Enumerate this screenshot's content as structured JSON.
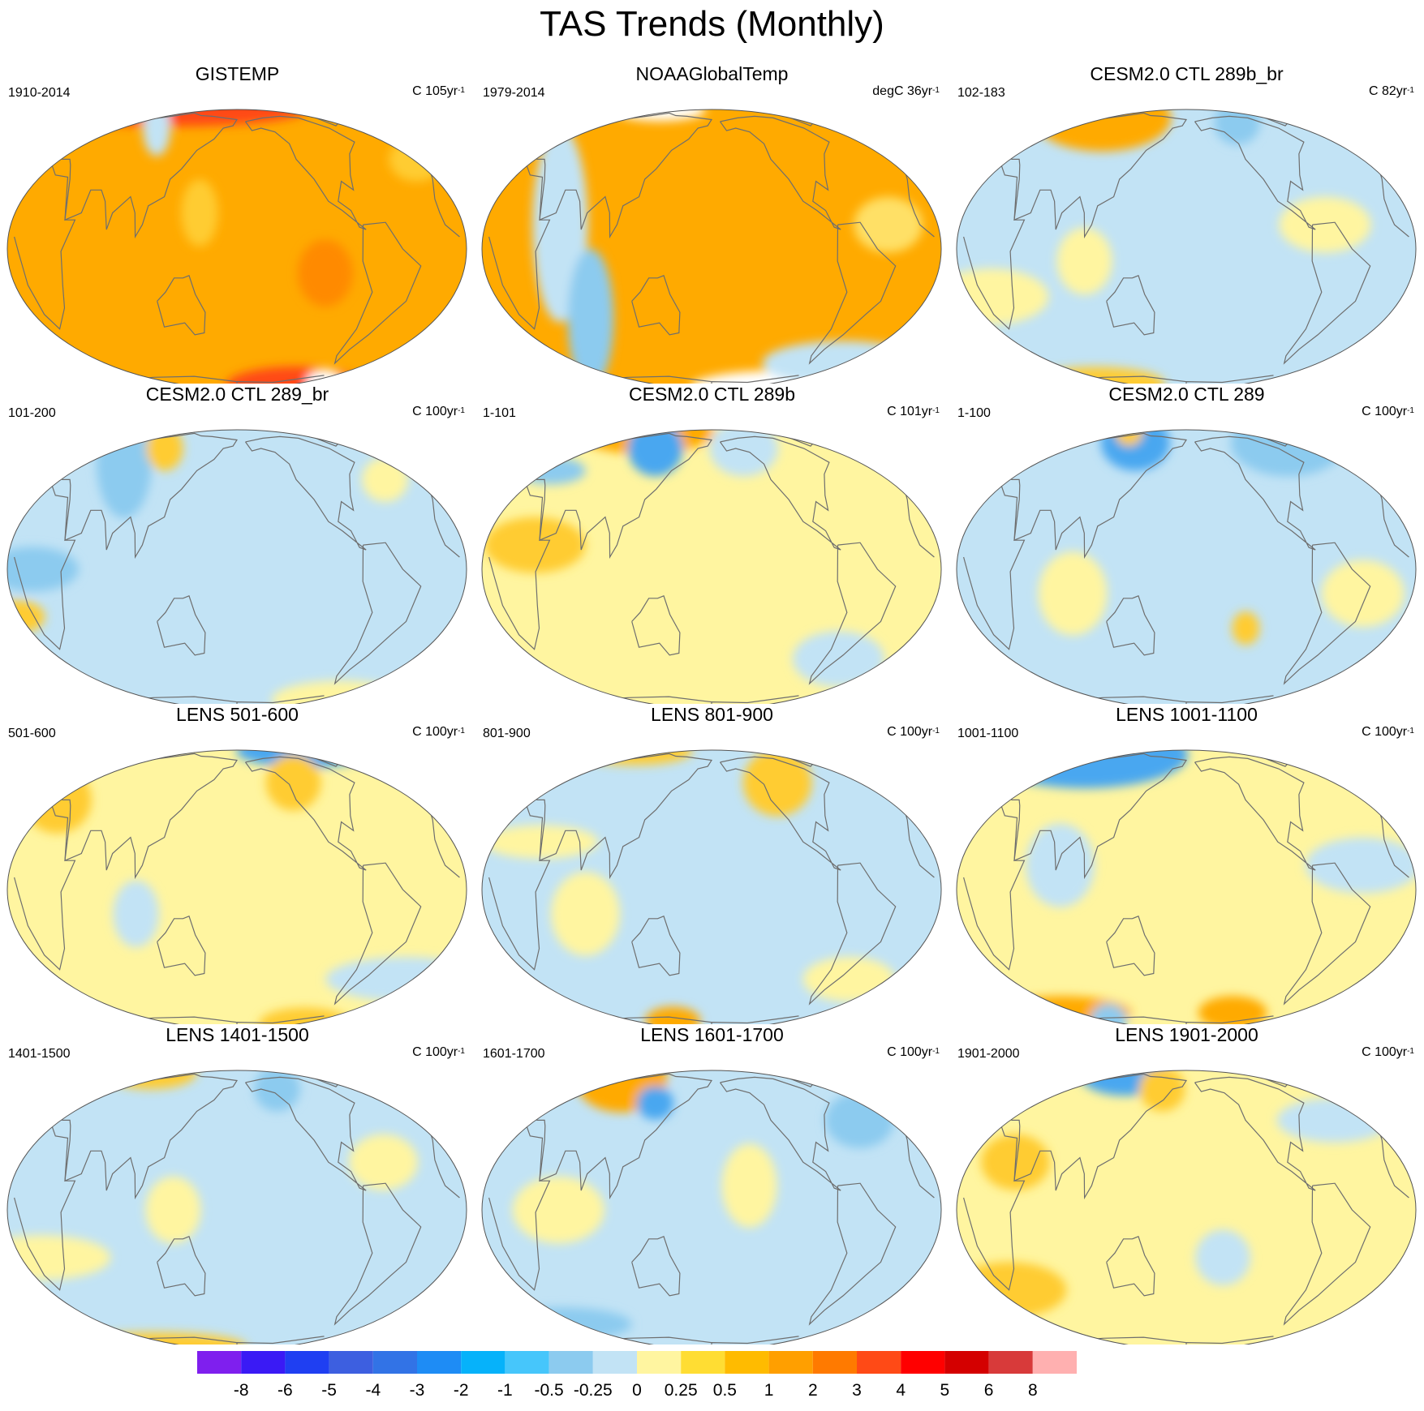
{
  "title": "TAS Trends (Monthly)",
  "colors": {
    "land_outline": "#6e6e6e",
    "ocean_edge": "#555555",
    "missing": "#ffffff"
  },
  "panels": [
    {
      "title": "GISTEMP",
      "period": "1910-2014",
      "units_prefix": "C 105yr",
      "units_sup": "-1",
      "base": "#ffaa00",
      "blobs": [
        {
          "lon": 0,
          "lat": 86,
          "rx": 0.6,
          "ry": 0.06,
          "c": "#ff4a16"
        },
        {
          "lon": -60,
          "lat": -80,
          "rx": 0.3,
          "ry": 0.07,
          "c": "#ff4a16"
        },
        {
          "lon": -25,
          "lat": -75,
          "rx": 0.08,
          "ry": 0.05,
          "c": "#ffffff"
        },
        {
          "lon": 80,
          "lat": 60,
          "rx": 0.06,
          "ry": 0.1,
          "c": "#c2e3f5"
        },
        {
          "lon": 150,
          "lat": 15,
          "rx": 0.08,
          "ry": 0.12,
          "c": "#ffcc33"
        },
        {
          "lon": -110,
          "lat": -10,
          "rx": 0.12,
          "ry": 0.12,
          "c": "#ff8a00"
        },
        {
          "lon": -10,
          "lat": 40,
          "rx": 0.12,
          "ry": 0.08,
          "c": "#ffcc33"
        }
      ]
    },
    {
      "title": "NOAAGlobalTemp",
      "period": "1979-2014",
      "units_prefix": "degC 36yr",
      "units_sup": "-1",
      "base": "#ffaa00",
      "blobs": [
        {
          "lon": 60,
          "lat": 10,
          "rx": 0.12,
          "ry": 0.35,
          "c": "#c2e3f5"
        },
        {
          "lon": 75,
          "lat": -30,
          "rx": 0.1,
          "ry": 0.25,
          "c": "#8ccbef"
        },
        {
          "lon": -20,
          "lat": -82,
          "rx": 0.4,
          "ry": 0.06,
          "c": "#ffffff"
        },
        {
          "lon": 40,
          "lat": 86,
          "rx": 0.2,
          "ry": 0.04,
          "c": "#ffffff"
        },
        {
          "lon": -30,
          "lat": -55,
          "rx": 0.35,
          "ry": 0.08,
          "c": "#c2e3f5"
        },
        {
          "lon": -40,
          "lat": 10,
          "rx": 0.15,
          "ry": 0.1,
          "c": "#ffe066"
        }
      ]
    },
    {
      "title": "CESM2.0 CTL 289b_br",
      "period": "102-183",
      "units_prefix": "C 82yr",
      "units_sup": "-1",
      "base": "#c2e3f5",
      "blobs": [
        {
          "lon": 50,
          "lat": 70,
          "rx": 0.3,
          "ry": 0.12,
          "c": "#ffaa00"
        },
        {
          "lon": -70,
          "lat": 10,
          "rx": 0.2,
          "ry": 0.1,
          "c": "#fff5a0"
        },
        {
          "lon": 20,
          "lat": -20,
          "rx": 0.25,
          "ry": 0.1,
          "c": "#fff5a0"
        },
        {
          "lon": -110,
          "lat": 65,
          "rx": 0.1,
          "ry": 0.08,
          "c": "#8ccbef"
        },
        {
          "lon": 20,
          "lat": -75,
          "rx": 0.3,
          "ry": 0.06,
          "c": "#ffcc33"
        },
        {
          "lon": 100,
          "lat": -5,
          "rx": 0.12,
          "ry": 0.12,
          "c": "#fff5a0"
        }
      ]
    },
    {
      "title": "CESM2.0 CTL 289_br",
      "period": "101-200",
      "units_prefix": "C 100yr",
      "units_sup": "-1",
      "base": "#c2e3f5",
      "blobs": [
        {
          "lon": 20,
          "lat": 0,
          "rx": 0.2,
          "ry": 0.08,
          "c": "#8ccbef"
        },
        {
          "lon": 0,
          "lat": -20,
          "rx": 0.12,
          "ry": 0.06,
          "c": "#ffcc33"
        },
        {
          "lon": 60,
          "lat": 50,
          "rx": 0.12,
          "ry": 0.2,
          "c": "#8ccbef"
        },
        {
          "lon": -40,
          "lat": 40,
          "rx": 0.1,
          "ry": 0.08,
          "c": "#fff5a0"
        },
        {
          "lon": 90,
          "lat": 60,
          "rx": 0.08,
          "ry": 0.08,
          "c": "#ffcc33"
        },
        {
          "lon": -20,
          "lat": -70,
          "rx": 0.3,
          "ry": 0.07,
          "c": "#fff5a0"
        }
      ]
    },
    {
      "title": "CESM2.0 CTL 289b",
      "period": "1-101",
      "units_prefix": "C 101yr",
      "units_sup": "-1",
      "base": "#fff5a0",
      "blobs": [
        {
          "lon": 40,
          "lat": 80,
          "rx": 0.3,
          "ry": 0.08,
          "c": "#ffaa00"
        },
        {
          "lon": 110,
          "lat": 60,
          "rx": 0.12,
          "ry": 0.1,
          "c": "#4aa7f0"
        },
        {
          "lon": 40,
          "lat": 10,
          "rx": 0.22,
          "ry": 0.1,
          "c": "#ffcc33"
        },
        {
          "lon": -60,
          "lat": -40,
          "rx": 0.2,
          "ry": 0.1,
          "c": "#c2e3f5"
        },
        {
          "lon": 20,
          "lat": 45,
          "rx": 0.15,
          "ry": 0.05,
          "c": "#8ccbef"
        },
        {
          "lon": -140,
          "lat": 60,
          "rx": 0.15,
          "ry": 0.1,
          "c": "#c2e3f5"
        }
      ]
    },
    {
      "title": "CESM2.0 CTL 289",
      "period": "1-100",
      "units_prefix": "C 100yr",
      "units_sup": "-1",
      "base": "#c2e3f5",
      "blobs": [
        {
          "lon": -40,
          "lat": 65,
          "rx": 0.25,
          "ry": 0.12,
          "c": "#8ccbef"
        },
        {
          "lon": 110,
          "lat": 65,
          "rx": 0.15,
          "ry": 0.1,
          "c": "#4aa7f0"
        },
        {
          "lon": -40,
          "lat": -10,
          "rx": 0.18,
          "ry": 0.12,
          "c": "#fff5a0"
        },
        {
          "lon": 90,
          "lat": -10,
          "rx": 0.15,
          "ry": 0.15,
          "c": "#fff5a0"
        },
        {
          "lon": -130,
          "lat": -25,
          "rx": 0.06,
          "ry": 0.06,
          "c": "#ffcc33"
        },
        {
          "lon": 60,
          "lat": 80,
          "rx": 0.06,
          "ry": 0.05,
          "c": "#ffcc33"
        }
      ]
    },
    {
      "title": "LENS 501-600",
      "period": "501-600",
      "units_prefix": "C 100yr",
      "units_sup": "-1",
      "base": "#fff5a0",
      "blobs": [
        {
          "lon": -20,
          "lat": 83,
          "rx": 0.3,
          "ry": 0.06,
          "c": "#4aa7f0"
        },
        {
          "lon": 10,
          "lat": 40,
          "rx": 0.15,
          "ry": 0.12,
          "c": "#ffcc33"
        },
        {
          "lon": -20,
          "lat": -40,
          "rx": 0.35,
          "ry": 0.08,
          "c": "#c2e3f5"
        },
        {
          "lon": -120,
          "lat": 50,
          "rx": 0.12,
          "ry": 0.1,
          "c": "#ffcc33"
        },
        {
          "lon": 100,
          "lat": -10,
          "rx": 0.1,
          "ry": 0.12,
          "c": "#c2e3f5"
        },
        {
          "lon": -60,
          "lat": -75,
          "rx": 0.2,
          "ry": 0.06,
          "c": "#ffcc33"
        }
      ]
    },
    {
      "title": "LENS 801-900",
      "period": "801-900",
      "units_prefix": "C 100yr",
      "units_sup": "-1",
      "base": "#c2e3f5",
      "blobs": [
        {
          "lon": -110,
          "lat": 50,
          "rx": 0.15,
          "ry": 0.12,
          "c": "#ffcc33"
        },
        {
          "lon": 0,
          "lat": 83,
          "rx": 0.25,
          "ry": 0.05,
          "c": "#ffcc33"
        },
        {
          "lon": 40,
          "lat": 20,
          "rx": 0.25,
          "ry": 0.06,
          "c": "#fff5a0"
        },
        {
          "lon": 80,
          "lat": -10,
          "rx": 0.15,
          "ry": 0.15,
          "c": "#fff5a0"
        },
        {
          "lon": 120,
          "lat": -70,
          "rx": 0.12,
          "ry": 0.05,
          "c": "#ffaa00"
        },
        {
          "lon": -50,
          "lat": -40,
          "rx": 0.2,
          "ry": 0.08,
          "c": "#fff5a0"
        }
      ]
    },
    {
      "title": "LENS 1001-1100",
      "period": "1001-1100",
      "units_prefix": "C 100yr",
      "units_sup": "-1",
      "base": "#fff5a0",
      "blobs": [
        {
          "lon": 0,
          "lat": 75,
          "rx": 0.45,
          "ry": 0.12,
          "c": "#4aa7f0"
        },
        {
          "lon": -40,
          "lat": 10,
          "rx": 0.25,
          "ry": 0.1,
          "c": "#c2e3f5"
        },
        {
          "lon": 80,
          "lat": 10,
          "rx": 0.15,
          "ry": 0.15,
          "c": "#c2e3f5"
        },
        {
          "lon": 20,
          "lat": -62,
          "rx": 0.3,
          "ry": 0.06,
          "c": "#ffaa00"
        },
        {
          "lon": -120,
          "lat": -62,
          "rx": 0.15,
          "ry": 0.06,
          "c": "#ffaa00"
        },
        {
          "lon": 60,
          "lat": -70,
          "rx": 0.08,
          "ry": 0.06,
          "c": "#8ccbef"
        }
      ]
    },
    {
      "title": "LENS 1401-1500",
      "period": "1401-1500",
      "units_prefix": "C 100yr",
      "units_sup": "-1",
      "base": "#c2e3f5",
      "blobs": [
        {
          "lon": 20,
          "lat": -20,
          "rx": 0.3,
          "ry": 0.08,
          "c": "#fff5a0"
        },
        {
          "lon": -60,
          "lat": 20,
          "rx": 0.15,
          "ry": 0.1,
          "c": "#fff5a0"
        },
        {
          "lon": 0,
          "lat": 80,
          "rx": 0.2,
          "ry": 0.06,
          "c": "#ffcc33"
        },
        {
          "lon": 20,
          "lat": -78,
          "rx": 0.4,
          "ry": 0.05,
          "c": "#ffcc33"
        },
        {
          "lon": 130,
          "lat": 0,
          "rx": 0.12,
          "ry": 0.12,
          "c": "#fff5a0"
        },
        {
          "lon": -130,
          "lat": 60,
          "rx": 0.1,
          "ry": 0.08,
          "c": "#8ccbef"
        }
      ]
    },
    {
      "title": "LENS 1601-1700",
      "period": "1601-1700",
      "units_prefix": "C 100yr",
      "units_sup": "-1",
      "base": "#c2e3f5",
      "blobs": [
        {
          "lon": 40,
          "lat": 70,
          "rx": 0.2,
          "ry": 0.12,
          "c": "#ffaa00"
        },
        {
          "lon": 60,
          "lat": 0,
          "rx": 0.2,
          "ry": 0.12,
          "c": "#fff5a0"
        },
        {
          "lon": -150,
          "lat": 10,
          "rx": 0.12,
          "ry": 0.15,
          "c": "#fff5a0"
        },
        {
          "lon": 10,
          "lat": -55,
          "rx": 0.3,
          "ry": 0.06,
          "c": "#8ccbef"
        },
        {
          "lon": -40,
          "lat": 40,
          "rx": 0.15,
          "ry": 0.1,
          "c": "#8ccbef"
        },
        {
          "lon": 120,
          "lat": 50,
          "rx": 0.08,
          "ry": 0.06,
          "c": "#4aa7f0"
        }
      ]
    },
    {
      "title": "LENS 1901-2000",
      "period": "1901-2000",
      "units_prefix": "C 100yr",
      "units_sup": "-1",
      "base": "#fff5a0",
      "blobs": [
        {
          "lon": 60,
          "lat": 78,
          "rx": 0.2,
          "ry": 0.08,
          "c": "#4aa7f0"
        },
        {
          "lon": -40,
          "lat": 40,
          "rx": 0.25,
          "ry": 0.08,
          "c": "#c2e3f5"
        },
        {
          "lon": 40,
          "lat": 20,
          "rx": 0.15,
          "ry": 0.1,
          "c": "#ffcc33"
        },
        {
          "lon": 20,
          "lat": -35,
          "rx": 0.25,
          "ry": 0.1,
          "c": "#ffcc33"
        },
        {
          "lon": -150,
          "lat": -20,
          "rx": 0.12,
          "ry": 0.1,
          "c": "#c2e3f5"
        },
        {
          "lon": 150,
          "lat": 60,
          "rx": 0.1,
          "ry": 0.08,
          "c": "#ffcc33"
        }
      ]
    }
  ],
  "colorbar": {
    "colors": [
      "#7f1fee",
      "#3a1af5",
      "#1f3ff2",
      "#3d5fe0",
      "#3273e6",
      "#1e8cf5",
      "#06b2fa",
      "#46c6fb",
      "#8ccbef",
      "#c2e3f5",
      "#fff5a0",
      "#ffdd33",
      "#ffbb00",
      "#ff9f00",
      "#ff7a00",
      "#ff4a16",
      "#ff0000",
      "#d40000",
      "#d83a3a",
      "#ffb0b0"
    ],
    "labels": [
      "-8",
      "-6",
      "-5",
      "-4",
      "-3",
      "-2",
      "-1",
      "-0.5",
      "-0.25",
      "0",
      "0.25",
      "0.5",
      "1",
      "2",
      "3",
      "4",
      "5",
      "6",
      "8"
    ]
  }
}
